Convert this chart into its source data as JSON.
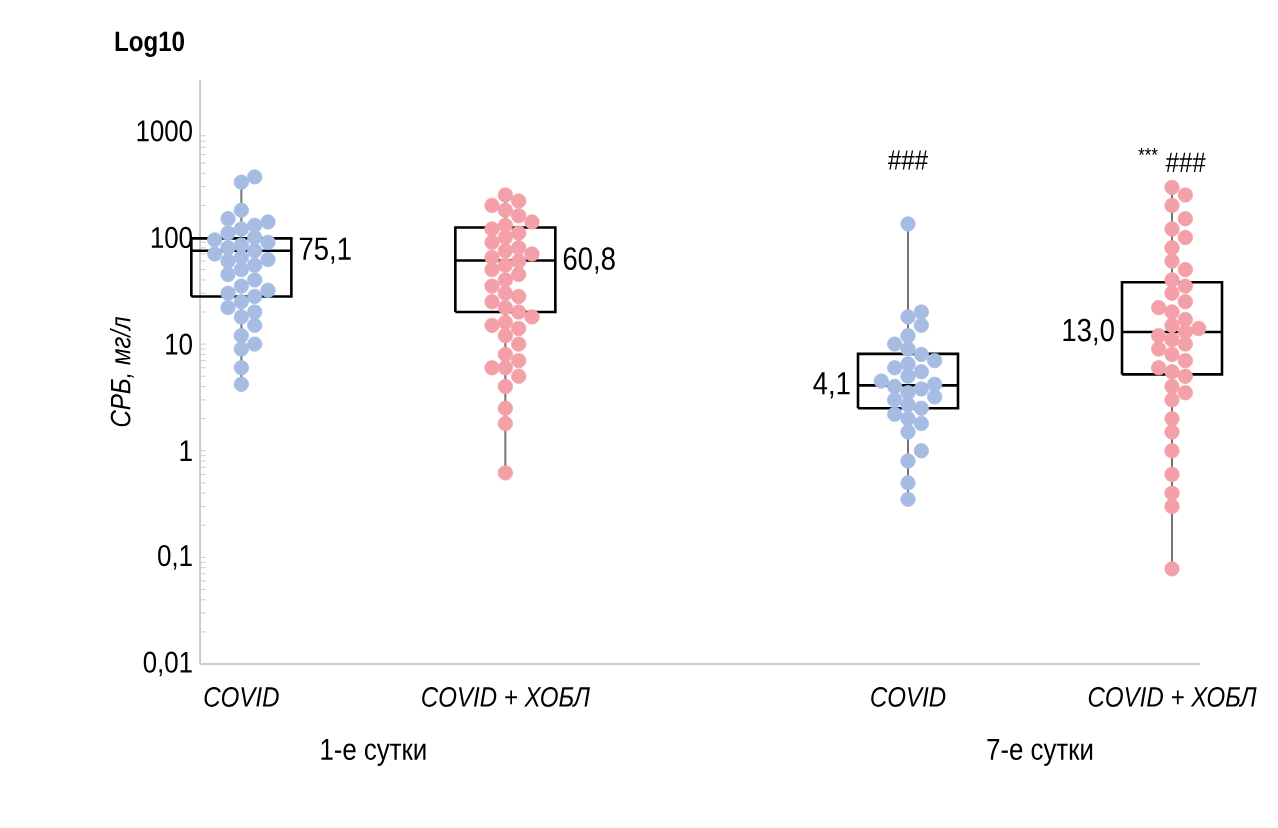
{
  "chart_data": {
    "type": "box",
    "categories": [
      "1-е сутки",
      "7-е сутки"
    ],
    "ylabel": "СРБ, мг/л",
    "log": "y",
    "ylim": [
      0.01,
      3000
    ],
    "yticks": [
      {
        "value": 0.01,
        "label": "0,01"
      },
      {
        "value": 0.1,
        "label": "0,1"
      },
      1,
      10,
      100,
      1000
    ],
    "marker": "circle",
    "series": [
      {
        "color": "#000000",
        "boxes": [
          {
            "low": 4.2,
            "q1": 28,
            "median": 75.1,
            "q3": 98,
            "high": 370
          },
          null
        ]
      },
      {
        "color": "#000000",
        "boxes": [
          {
            "low": 0.62,
            "q1": 20,
            "median": 60.8,
            "q3": 124,
            "high": 250
          },
          null
        ]
      },
      {
        "color": "#000000",
        "boxes": [
          null,
          {
            "low": 0.35,
            "q1": 2.5,
            "median": 4.1,
            "q3": 8.1,
            "high": 134
          }
        ]
      },
      {
        "color": "#000000",
        "boxes": [
          null,
          {
            "low": 0.078,
            "q1": 5.2,
            "median": 13.0,
            "q3": 38,
            "high": 295
          }
        ]
      },
      {
        "type": "scatter",
        "color": "#a7bce3",
        "x": [
          "1-е сутки",
          "1-е сутки",
          "1-е сутки",
          "1-е сутки",
          "1-е сутки",
          "1-е сутки",
          "1-е сутки",
          "1-е сутки",
          "1-е сутки",
          "1-е сутки",
          "1-е сутки",
          "1-е сутки",
          "1-е сутки",
          "1-е сутки",
          "1-е сутки",
          "1-е сутки",
          "1-е сутки",
          "1-е сутки",
          "1-е сутки",
          "1-е сутки",
          "1-е сутки",
          "1-е сутки",
          "1-е сутки",
          "1-е сутки",
          "1-е сутки",
          "1-е сутки",
          "1-е сутки",
          "1-е сутки",
          "1-е сутки",
          "1-е сутки",
          "1-е сутки",
          "1-е сутки",
          "1-е сутки",
          "1-е сутки",
          "1-е сутки",
          "1-е сутки"
        ],
        "values": [
          4.2,
          6,
          9,
          10,
          12,
          15,
          18,
          20,
          22,
          25,
          28,
          30,
          32,
          35,
          40,
          45,
          50,
          55,
          60,
          62,
          65,
          70,
          75,
          80,
          85,
          90,
          95,
          100,
          110,
          120,
          130,
          140,
          150,
          180,
          330,
          370
        ]
      },
      {
        "type": "scatter",
        "color": "#f4a0a8",
        "x": [
          "1-е сутки",
          "1-е сутки",
          "1-е сутки",
          "1-е сутки",
          "1-е сутки",
          "1-е сутки",
          "1-е сутки",
          "1-е сутки",
          "1-е сутки",
          "1-е сутки",
          "1-е сутки",
          "1-е сутки",
          "1-е сутки",
          "1-е сутки",
          "1-е сутки",
          "1-е сутки",
          "1-е сутки",
          "1-е сутки",
          "1-е сутки",
          "1-е сутки",
          "1-е сутки",
          "1-е сутки",
          "1-е сутки",
          "1-е сутки",
          "1-е сутки",
          "1-е сутки",
          "1-е сутки",
          "1-е сутки",
          "1-е сутки",
          "1-е сутки",
          "1-е сутки",
          "1-е сутки",
          "1-е сутки",
          "1-е сутки",
          "1-е сутки",
          "1-е сутки",
          "1-е сутки",
          "1-е сутки",
          "1-е сутки",
          "1-е сутки",
          "1-е сутки"
        ],
        "values": [
          0.62,
          1.8,
          2.5,
          4,
          5,
          6,
          6,
          7,
          8,
          10,
          12,
          14,
          15,
          16,
          18,
          20,
          22,
          25,
          28,
          30,
          35,
          40,
          45,
          50,
          55,
          60,
          65,
          70,
          75,
          80,
          90,
          100,
          110,
          120,
          130,
          140,
          160,
          180,
          200,
          220,
          250
        ]
      },
      {
        "type": "scatter",
        "color": "#a7bce3",
        "x": [
          "7-е сутки",
          "7-е сутки",
          "7-е сутки",
          "7-е сутки",
          "7-е сутки",
          "7-е сутки",
          "7-е сутки",
          "7-е сутки",
          "7-е сутки",
          "7-е сутки",
          "7-е сутки",
          "7-е сутки",
          "7-е сутки",
          "7-е сутки",
          "7-е сутки",
          "7-е сутки",
          "7-е сутки",
          "7-е сутки",
          "7-е сутки",
          "7-е сутки",
          "7-е сутки",
          "7-е сутки",
          "7-е сутки",
          "7-е сутки",
          "7-е сутки",
          "7-е сутки",
          "7-е сутки",
          "7-е сутки",
          "7-е сутки",
          "7-е сутки"
        ],
        "values": [
          0.35,
          0.5,
          0.8,
          1,
          1.5,
          1.8,
          2,
          2.2,
          2.5,
          2.7,
          3,
          3.2,
          3.5,
          3.8,
          4,
          4.2,
          4.5,
          5,
          5.5,
          6,
          6.5,
          7,
          8,
          9,
          10,
          12,
          15,
          18,
          20,
          134
        ]
      },
      {
        "type": "scatter",
        "color": "#f4a0a8",
        "x": [
          "7-е сутки",
          "7-е сутки",
          "7-е сутки",
          "7-е сутки",
          "7-е сутки",
          "7-е сутки",
          "7-е сутки",
          "7-е сутки",
          "7-е сутки",
          "7-е сутки",
          "7-е сутки",
          "7-е сутки",
          "7-е сутки",
          "7-е сутки",
          "7-е сутки",
          "7-е сутки",
          "7-е сутки",
          "7-е сутки",
          "7-е сутки",
          "7-е сутки",
          "7-е сутки",
          "7-е сутки",
          "7-е сутки",
          "7-е сутки",
          "7-е сутки",
          "7-е сутки",
          "7-е сутки",
          "7-е сутки",
          "7-е сутки",
          "7-е сутки",
          "7-е сутки",
          "7-е сутки",
          "7-е сутки",
          "7-е сутки",
          "7-е сутки",
          "7-е сутки",
          "7-е сутки",
          "7-е сутки"
        ],
        "values": [
          0.078,
          0.3,
          0.4,
          0.6,
          1,
          1.5,
          2,
          3,
          3.5,
          4,
          5,
          5.5,
          6,
          7,
          8,
          9,
          10,
          11,
          12,
          13,
          14,
          15,
          17,
          20,
          22,
          25,
          30,
          35,
          40,
          50,
          60,
          80,
          100,
          120,
          150,
          200,
          250,
          295
        ]
      }
    ],
    "annotations": [
      "Log10",
      "###",
      "$^{***}$ ###",
      "75,1",
      "60,8",
      "4,1",
      "13,0",
      "COVID",
      "COVID + ХОБЛ",
      "COVID",
      "COVID + ХОБЛ"
    ]
  }
}
